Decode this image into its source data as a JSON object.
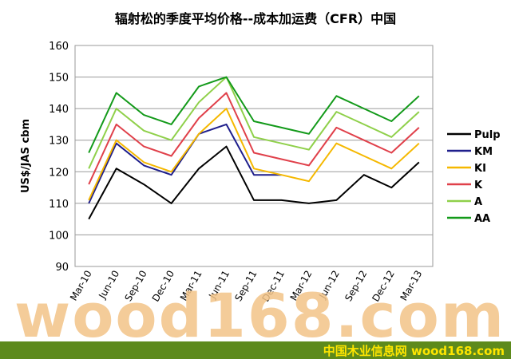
{
  "title": "辐射松的季度平均价格--成本加运费（CFR）中国",
  "watermark": "wood168.com",
  "footer": "中国木业信息网 wood168.com",
  "chart_data": {
    "type": "line",
    "title": "辐射松的季度平均价格--成本加运费（CFR）中国",
    "ylabel": "US$/JAS cbm",
    "xlabel": "",
    "ylim": [
      90,
      160
    ],
    "yticks": [
      90,
      100,
      110,
      120,
      130,
      140,
      150,
      160
    ],
    "grid": "horizontal",
    "legend_position": "right",
    "categories": [
      "Mar-10",
      "Jun-10",
      "Sep-10",
      "Dec-10",
      "Mar-11",
      "Jun-11",
      "Sep-11",
      "Dec-11",
      "Mar-12",
      "Jun-12",
      "Sep-12",
      "Dec-12",
      "Mar-13"
    ],
    "series": [
      {
        "name": "Pulp",
        "color": "#000000",
        "values": [
          105,
          121,
          116,
          110,
          121,
          128,
          111,
          111,
          110,
          111,
          119,
          115,
          123
        ]
      },
      {
        "name": "KM",
        "color": "#1f1f8c",
        "values": [
          110,
          129,
          122,
          119,
          132,
          135,
          119,
          119,
          null,
          null,
          null,
          null,
          null
        ]
      },
      {
        "name": "KI",
        "color": "#f5b800",
        "values": [
          111,
          130,
          123,
          120,
          132,
          140,
          121,
          119,
          117,
          129,
          125,
          121,
          129
        ]
      },
      {
        "name": "K",
        "color": "#e0404a",
        "values": [
          116,
          135,
          128,
          125,
          137,
          145,
          126,
          124,
          122,
          134,
          130,
          126,
          134
        ]
      },
      {
        "name": "A",
        "color": "#8fd04a",
        "values": [
          121,
          140,
          133,
          130,
          142,
          150,
          131,
          129,
          127,
          139,
          135,
          131,
          139
        ]
      },
      {
        "name": "AA",
        "color": "#139a1a",
        "values": [
          126,
          145,
          138,
          135,
          147,
          150,
          136,
          134,
          132,
          144,
          140,
          136,
          144
        ]
      }
    ]
  }
}
